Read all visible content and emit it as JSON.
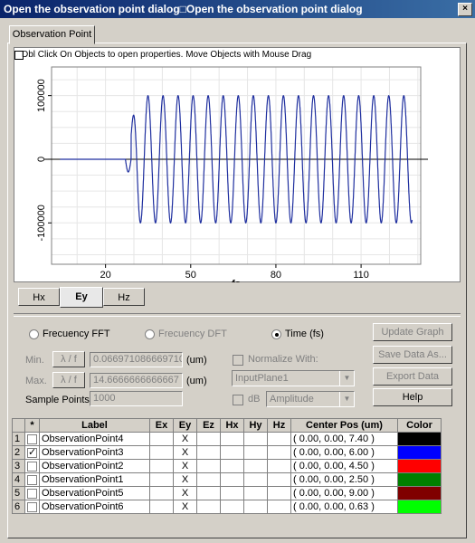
{
  "window": {
    "title": "Open the observation point dialog□Open the observation point dialog",
    "close": "×"
  },
  "tab": {
    "label": "Observation Point"
  },
  "graph": {
    "message": "Dbl Click On Objects to open properties.  Move Objects with Mouse Drag",
    "line_color": "#1f2f9f"
  },
  "chart_data": {
    "type": "line",
    "xlabel": "fs",
    "xticks": [
      20,
      50,
      80,
      110
    ],
    "yticks": [
      100000,
      0,
      -100000
    ],
    "ytick_labels": [
      "100000",
      "0",
      "-100000"
    ],
    "xlim": [
      1,
      131
    ],
    "ylim": [
      -165000,
      145000
    ],
    "series": [
      {
        "signal": "sinusoid",
        "amplitude": 100000,
        "period_fs": 5.3,
        "onset_fs": 27,
        "end_fs": 128
      }
    ]
  },
  "subtabs": [
    "Hx",
    "Ey",
    "Hz"
  ],
  "options": {
    "freq_fft": "Frecuency FFT",
    "freq_dft": "Frecuency DFT",
    "time": "Time (fs)",
    "min_label": "Min.",
    "max_label": "Max.",
    "lambda_btn": "λ / f",
    "min_value": "0.066971086669710",
    "max_value": "14.6666666666667",
    "unit": "(um)",
    "sample_label": "Sample Points:",
    "sample_value": "1000",
    "normalize_label": "Normalize With:",
    "normalize_value": "InputPlane1",
    "db_label": "dB",
    "amplitude_value": "Amplitude"
  },
  "buttons": {
    "update": "Update Graph",
    "save": "Save Data As...",
    "export": "Export Data",
    "help": "Help"
  },
  "table": {
    "headers": [
      "",
      "*",
      "Label",
      "Ex",
      "Ey",
      "Ez",
      "Hx",
      "Hy",
      "Hz",
      "Center Pos (um)",
      "Color"
    ],
    "rows": [
      {
        "n": "1",
        "checked": false,
        "label": "ObservationPoint4",
        "ey": "X",
        "pos": "( 0.00, 0.00, 7.40 )",
        "color": "#000000"
      },
      {
        "n": "2",
        "checked": true,
        "label": "ObservationPoint3",
        "ey": "X",
        "pos": "( 0.00, 0.00, 6.00 )",
        "color": "#0000ff"
      },
      {
        "n": "3",
        "checked": false,
        "label": "ObservationPoint2",
        "ey": "X",
        "pos": "( 0.00, 0.00, 4.50 )",
        "color": "#ff0000"
      },
      {
        "n": "4",
        "checked": false,
        "label": "ObservationPoint1",
        "ey": "X",
        "pos": "( 0.00, 0.00, 2.50 )",
        "color": "#008000"
      },
      {
        "n": "5",
        "checked": false,
        "label": "ObservationPoint5",
        "ey": "X",
        "pos": "( 0.00, 0.00, 9.00 )",
        "color": "#800000"
      },
      {
        "n": "6",
        "checked": false,
        "label": "ObservationPoint6",
        "ey": "X",
        "pos": "( 0.00, 0.00, 0.63 )",
        "color": "#00ff00"
      }
    ]
  }
}
